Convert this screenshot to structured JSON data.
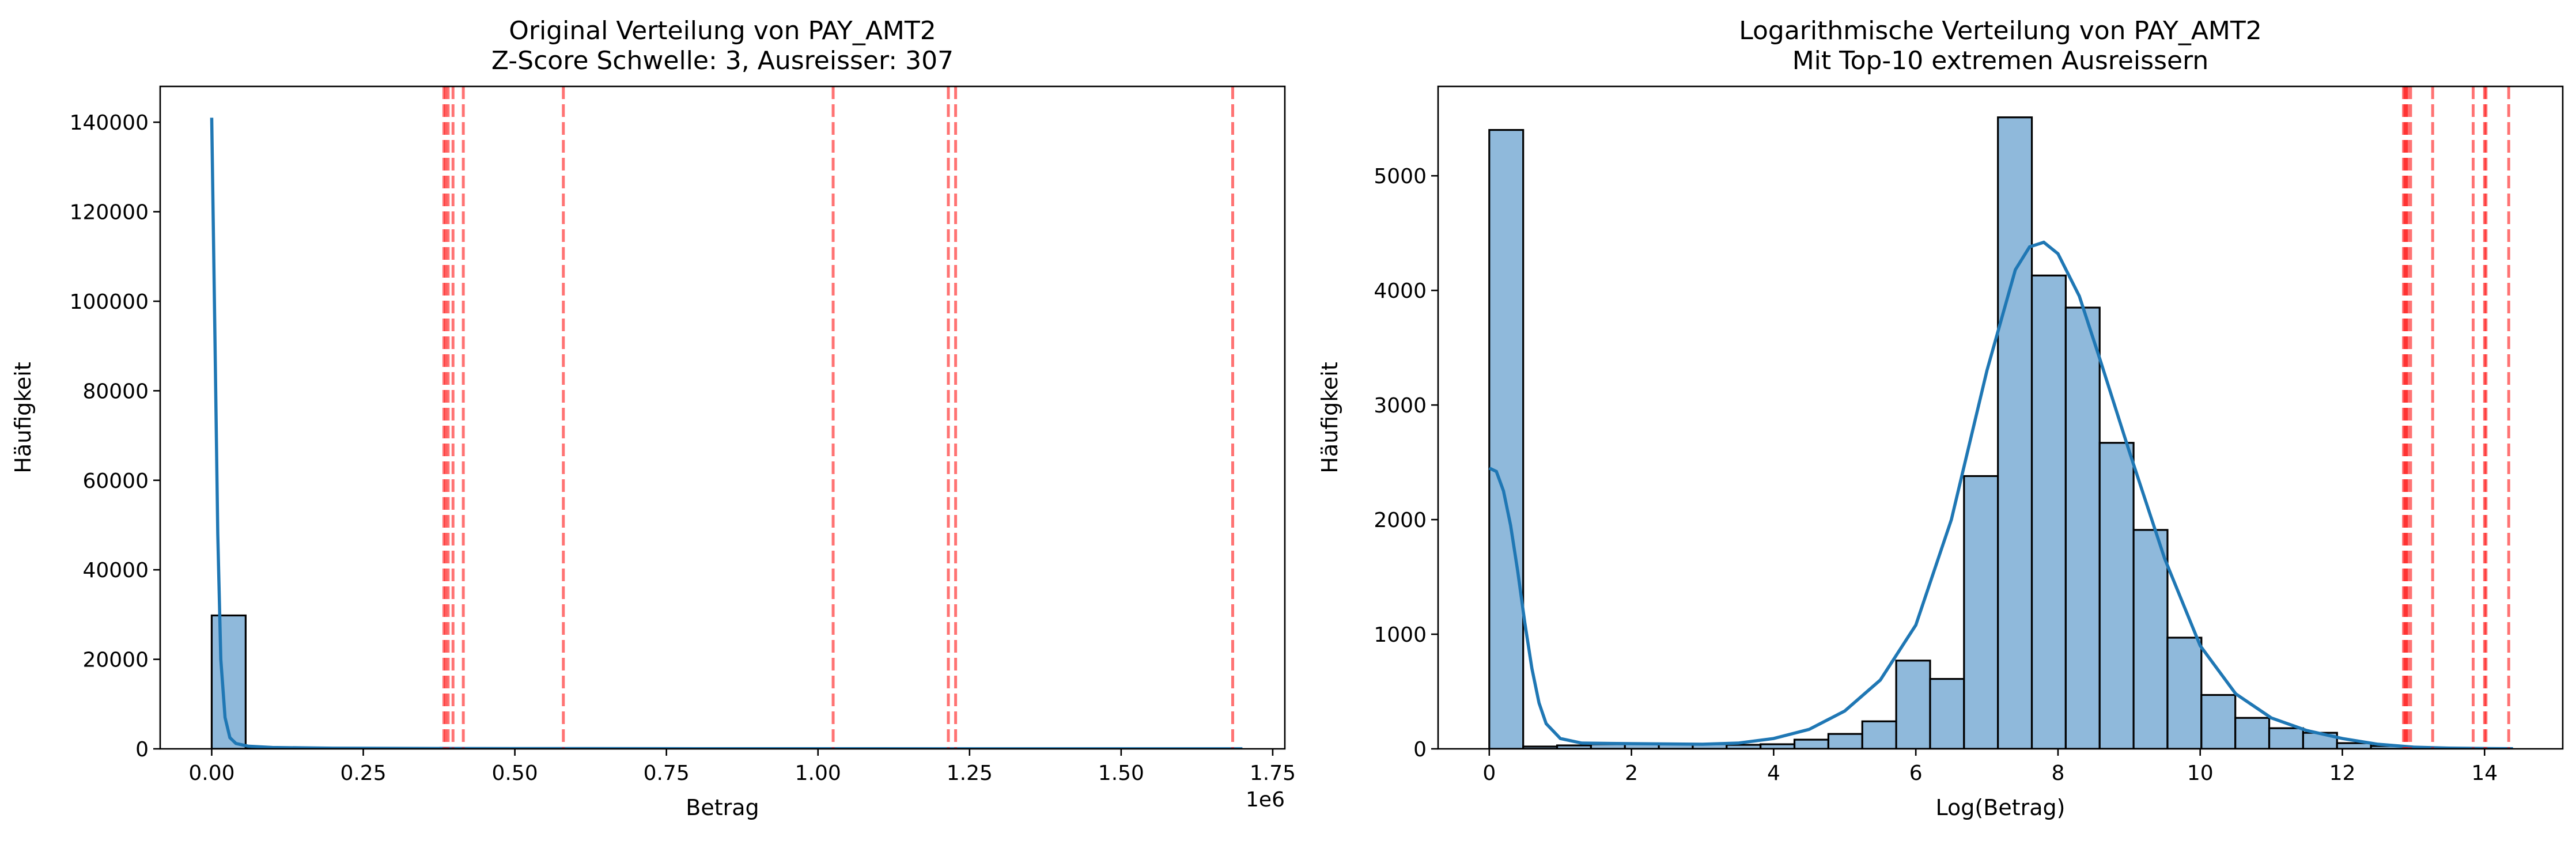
{
  "chart_data": [
    {
      "type": "bar",
      "title": "Original Verteilung von PAY_AMT2\nZ-Score Schwelle: 3, Ausreisser: 307",
      "xlabel": "Betrag",
      "ylabel": "Häufigkeit",
      "x_offset_label": "1e6",
      "xlim": [
        -0.085,
        1.77
      ],
      "ylim": [
        0,
        148000
      ],
      "x_scale_factor": 1000000,
      "x_ticks": [
        0.0,
        0.25,
        0.5,
        0.75,
        1.0,
        1.25,
        1.5,
        1.75
      ],
      "x_tick_labels": [
        "0.00",
        "0.25",
        "0.50",
        "0.75",
        "1.00",
        "1.25",
        "1.50",
        "1.75"
      ],
      "y_ticks": [
        0,
        20000,
        40000,
        60000,
        80000,
        100000,
        120000,
        140000
      ],
      "y_tick_labels": [
        "0",
        "20000",
        "40000",
        "60000",
        "80000",
        "100000",
        "120000",
        "140000"
      ],
      "bin_width": 0.056,
      "bars": [
        {
          "x": 0.0,
          "value": 29800
        },
        {
          "x": 0.056,
          "value": 120
        },
        {
          "x": 0.112,
          "value": 30
        },
        {
          "x": 0.168,
          "value": 15
        },
        {
          "x": 0.224,
          "value": 10
        },
        {
          "x": 0.28,
          "value": 8
        }
      ],
      "kde": [
        [
          0.0,
          141000
        ],
        [
          0.005,
          95000
        ],
        [
          0.01,
          48000
        ],
        [
          0.015,
          20000
        ],
        [
          0.022,
          7000
        ],
        [
          0.03,
          2500
        ],
        [
          0.04,
          1200
        ],
        [
          0.06,
          600
        ],
        [
          0.1,
          300
        ],
        [
          0.2,
          150
        ],
        [
          0.4,
          80
        ],
        [
          0.8,
          40
        ],
        [
          1.2,
          20
        ],
        [
          1.7,
          10
        ]
      ],
      "outlier_lines": [
        0.383,
        0.386,
        0.39,
        0.398,
        0.415,
        0.58,
        1.025,
        1.215,
        1.227,
        1.684
      ],
      "colors": {
        "bar": "#8fb9db",
        "edge": "#000000",
        "kde": "#1f77b4",
        "outlier": "#ff0000"
      }
    },
    {
      "type": "bar",
      "title": "Logarithmische Verteilung von PAY_AMT2\nMit Top-10 extremen Ausreissern",
      "xlabel": "Log(Betrag)",
      "ylabel": "Häufigkeit",
      "xlim": [
        -0.72,
        15.1
      ],
      "ylim": [
        0,
        5780
      ],
      "x_ticks": [
        0,
        2,
        4,
        6,
        8,
        10,
        12,
        14
      ],
      "x_tick_labels": [
        "0",
        "2",
        "4",
        "6",
        "8",
        "10",
        "12",
        "14"
      ],
      "y_ticks": [
        0,
        1000,
        2000,
        3000,
        4000,
        5000
      ],
      "y_tick_labels": [
        "0",
        "1000",
        "2000",
        "3000",
        "4000",
        "5000"
      ],
      "bin_width": 0.477,
      "bars": [
        {
          "x": 0.0,
          "value": 5400
        },
        {
          "x": 0.477,
          "value": 20
        },
        {
          "x": 0.954,
          "value": 30
        },
        {
          "x": 1.431,
          "value": 40
        },
        {
          "x": 1.908,
          "value": 45
        },
        {
          "x": 2.385,
          "value": 40
        },
        {
          "x": 2.862,
          "value": 40
        },
        {
          "x": 3.339,
          "value": 35
        },
        {
          "x": 3.816,
          "value": 40
        },
        {
          "x": 4.293,
          "value": 80
        },
        {
          "x": 4.77,
          "value": 130
        },
        {
          "x": 5.247,
          "value": 240
        },
        {
          "x": 5.724,
          "value": 770
        },
        {
          "x": 6.201,
          "value": 610
        },
        {
          "x": 6.678,
          "value": 2380
        },
        {
          "x": 7.155,
          "value": 5510
        },
        {
          "x": 7.632,
          "value": 4130
        },
        {
          "x": 8.109,
          "value": 3850
        },
        {
          "x": 8.586,
          "value": 2670
        },
        {
          "x": 9.063,
          "value": 1910
        },
        {
          "x": 9.54,
          "value": 970
        },
        {
          "x": 10.017,
          "value": 470
        },
        {
          "x": 10.494,
          "value": 270
        },
        {
          "x": 10.971,
          "value": 180
        },
        {
          "x": 11.448,
          "value": 140
        },
        {
          "x": 11.925,
          "value": 50
        },
        {
          "x": 12.402,
          "value": 25
        },
        {
          "x": 12.879,
          "value": 10
        }
      ],
      "kde": [
        [
          0.0,
          2450
        ],
        [
          0.1,
          2420
        ],
        [
          0.2,
          2250
        ],
        [
          0.3,
          1950
        ],
        [
          0.4,
          1550
        ],
        [
          0.5,
          1100
        ],
        [
          0.6,
          700
        ],
        [
          0.7,
          400
        ],
        [
          0.8,
          220
        ],
        [
          1.0,
          90
        ],
        [
          1.3,
          50
        ],
        [
          2.0,
          45
        ],
        [
          3.0,
          40
        ],
        [
          3.5,
          50
        ],
        [
          4.0,
          90
        ],
        [
          4.5,
          170
        ],
        [
          5.0,
          330
        ],
        [
          5.5,
          600
        ],
        [
          6.0,
          1080
        ],
        [
          6.5,
          2000
        ],
        [
          7.0,
          3300
        ],
        [
          7.4,
          4180
        ],
        [
          7.6,
          4380
        ],
        [
          7.8,
          4420
        ],
        [
          8.0,
          4320
        ],
        [
          8.3,
          3950
        ],
        [
          8.6,
          3380
        ],
        [
          9.0,
          2600
        ],
        [
          9.5,
          1660
        ],
        [
          10.0,
          900
        ],
        [
          10.5,
          480
        ],
        [
          11.0,
          270
        ],
        [
          11.5,
          160
        ],
        [
          12.0,
          90
        ],
        [
          12.5,
          40
        ],
        [
          13.0,
          15
        ],
        [
          13.5,
          6
        ],
        [
          14.0,
          3
        ],
        [
          14.4,
          1
        ]
      ],
      "outlier_lines": [
        12.86,
        12.88,
        12.9,
        12.92,
        12.96,
        13.27,
        13.84,
        14.0,
        14.02,
        14.34
      ],
      "colors": {
        "bar": "#8fb9db",
        "edge": "#000000",
        "kde": "#1f77b4",
        "outlier": "#ff0000"
      }
    }
  ]
}
